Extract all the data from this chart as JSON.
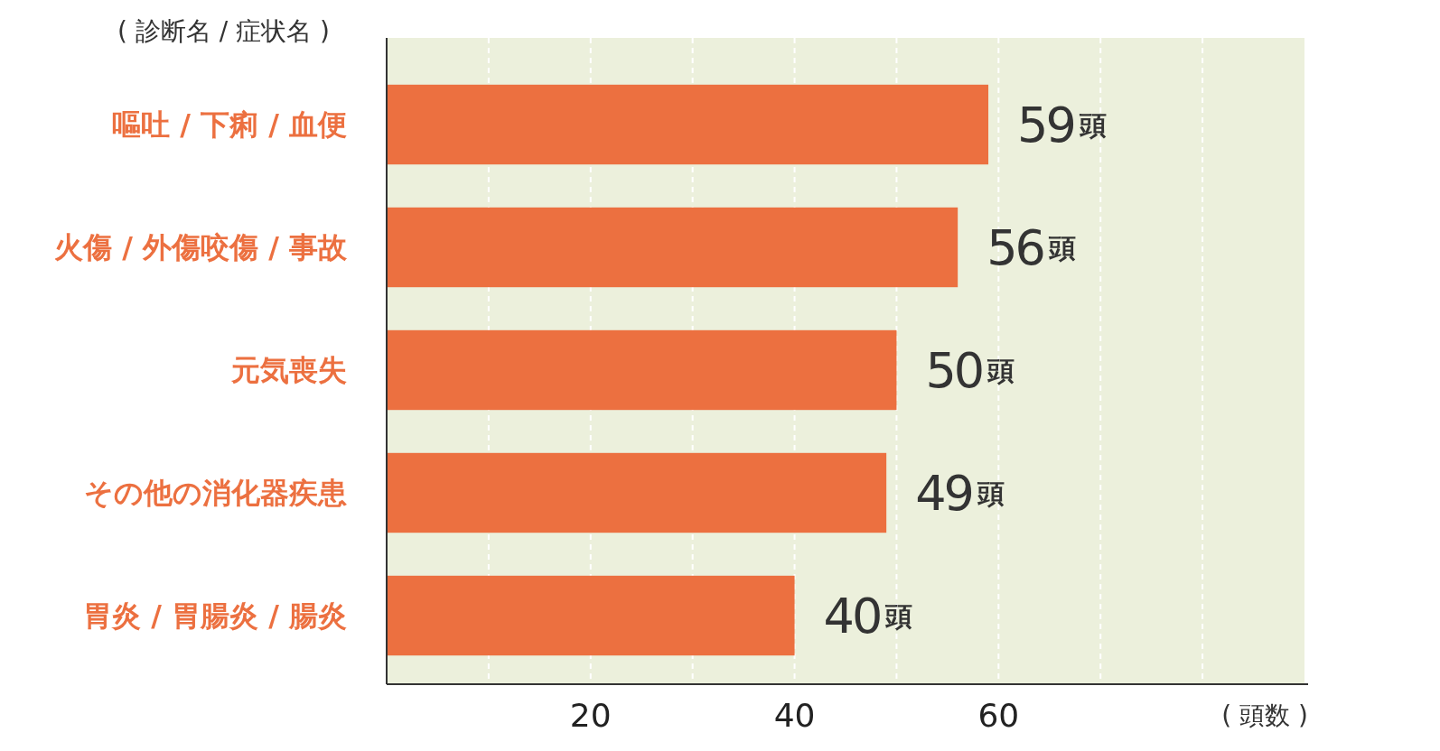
{
  "chart_data": {
    "type": "bar",
    "orientation": "horizontal",
    "ylabel": "( 診断名 / 症状名 )",
    "xlabel": "( 頭数 )",
    "categories": [
      "嘔吐 / 下痢 / 血便",
      "火傷 / 外傷咬傷 / 事故",
      "元気喪失",
      "その他の消化器疾患",
      "胃炎 / 胃腸炎 / 腸炎"
    ],
    "values": [
      59,
      56,
      50,
      49,
      40
    ],
    "value_labels": [
      "59頭",
      "56頭",
      "50頭",
      "49頭",
      "40頭"
    ],
    "color": "#ec7040",
    "xlim": [
      0,
      90
    ],
    "xticks": [
      {
        "value": 10,
        "label": null
      },
      20,
      {
        "value": 30,
        "label": null
      },
      40,
      {
        "value": 50,
        "label": null
      },
      60,
      {
        "value": 70,
        "label": null
      },
      {
        "value": 80,
        "label": null
      }
    ],
    "grid": "x"
  }
}
